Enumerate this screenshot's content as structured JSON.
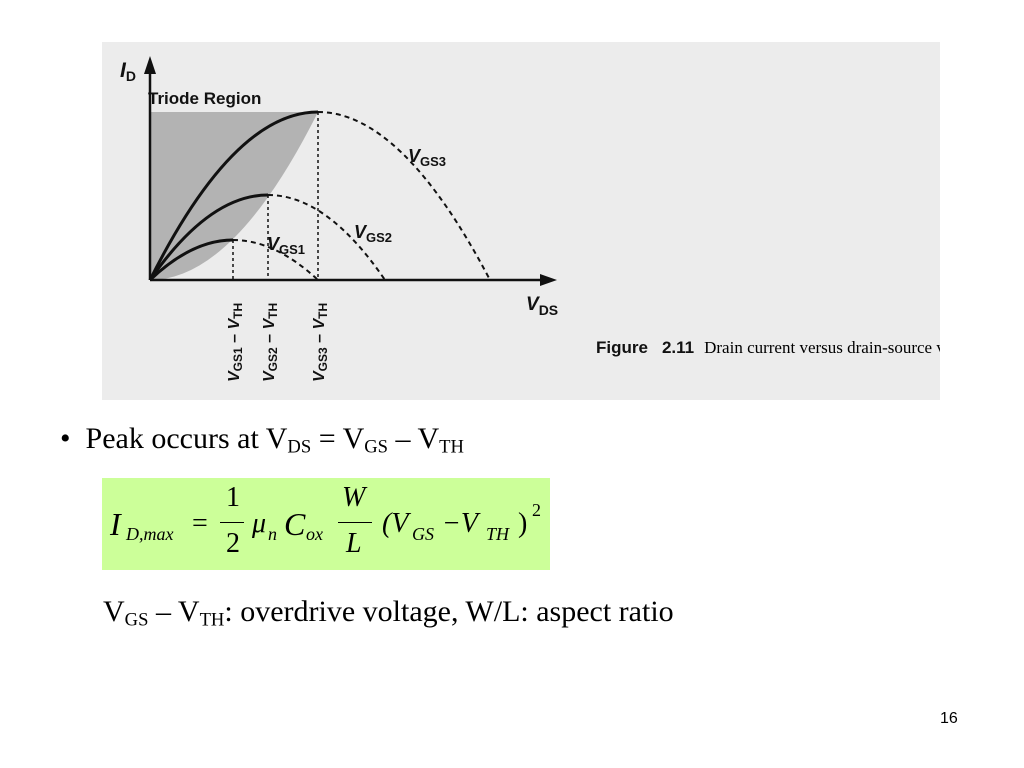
{
  "figure": {
    "y_axis": {
      "main": "I",
      "sub": "D"
    },
    "x_axis": {
      "main": "V",
      "sub": "DS"
    },
    "region_label": "Triode Region",
    "curve_labels": [
      {
        "main": "V",
        "sub": "GS3"
      },
      {
        "main": "V",
        "sub": "GS2"
      },
      {
        "main": "V",
        "sub": "GS1"
      }
    ],
    "peak_labels": [
      {
        "main1": "V",
        "sub1": "GS1",
        "sep": " – ",
        "main2": "V",
        "sub2": "TH"
      },
      {
        "main1": "V",
        "sub1": "GS2",
        "sep": " – ",
        "main2": "V",
        "sub2": "TH"
      },
      {
        "main1": "V",
        "sub1": "GS3",
        "sep": " – ",
        "main2": "V",
        "sub2": "TH"
      }
    ],
    "caption": {
      "label": "Figure",
      "number": "2.11",
      "text": "Drain current versus drain-source voltage in the triode region."
    }
  },
  "bullet": {
    "parts": [
      "Peak occurs at V",
      "DS",
      " = V",
      "GS",
      " – V",
      "TH"
    ]
  },
  "formula": {
    "lhs": "I",
    "lhs_sub": "D,max",
    "eq": "=",
    "num1": "1",
    "den1": "2",
    "mu": "μ",
    "mu_sub": "n",
    "c": "C",
    "c_sub": "ox",
    "num2": "W",
    "den2": "L",
    "open": "(V",
    "gs": "GS",
    "minus": "−V",
    "th": "TH",
    "close": ")",
    "power": "2"
  },
  "note": {
    "parts": [
      "V",
      "GS",
      " – V",
      "TH",
      ": overdrive voltage, W/L: aspect ratio"
    ]
  },
  "page_number": "16"
}
